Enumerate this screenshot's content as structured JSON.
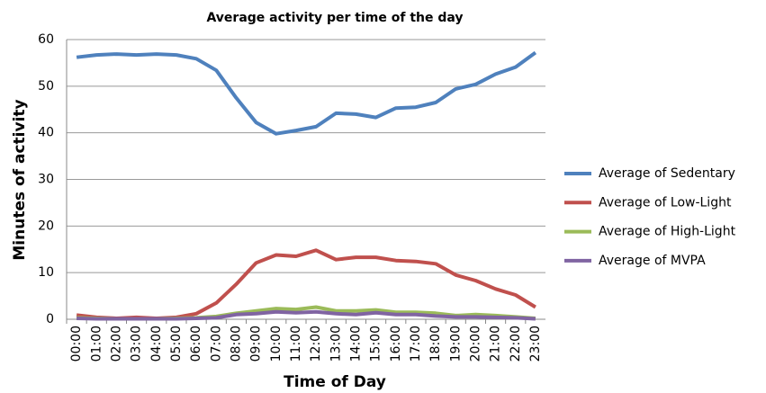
{
  "chart_data": {
    "type": "line",
    "title": "Average activity per time of the day",
    "x_label": "Time of Day",
    "y_label": "Minutes of activity",
    "categories": [
      "00:00",
      "01:00",
      "02:00",
      "03:00",
      "04:00",
      "05:00",
      "06:00",
      "07:00",
      "08:00",
      "09:00",
      "10:00",
      "11:00",
      "12:00",
      "13:00",
      "14:00",
      "15:00",
      "16:00",
      "17:00",
      "18:00",
      "19:00",
      "20:00",
      "21:00",
      "22:00",
      "23:00"
    ],
    "series": [
      {
        "name": "Average of Sedentary",
        "color": "#4f81bd",
        "values": [
          56.2,
          56.7,
          56.9,
          56.7,
          56.9,
          56.7,
          55.9,
          53.4,
          47.5,
          42.2,
          39.8,
          40.5,
          41.3,
          44.2,
          44.0,
          43.3,
          45.3,
          45.5,
          46.5,
          49.4,
          50.4,
          52.6,
          54.1,
          57.2
        ]
      },
      {
        "name": "Average of Low-Light",
        "color": "#c0504d",
        "values": [
          0.9,
          0.4,
          0.2,
          0.4,
          0.2,
          0.4,
          1.2,
          3.5,
          7.5,
          12.1,
          13.8,
          13.5,
          14.8,
          12.8,
          13.3,
          13.3,
          12.6,
          12.4,
          11.9,
          9.5,
          8.3,
          6.5,
          5.2,
          2.6
        ]
      },
      {
        "name": "Average of High-Light",
        "color": "#9bbb59",
        "values": [
          0.3,
          0.2,
          0.1,
          0.1,
          0.1,
          0.2,
          0.3,
          0.6,
          1.3,
          1.8,
          2.3,
          2.1,
          2.6,
          1.8,
          1.8,
          2.0,
          1.5,
          1.5,
          1.3,
          0.8,
          1.0,
          0.8,
          0.5,
          0.2
        ]
      },
      {
        "name": "Average of MVPA",
        "color": "#8064a2",
        "values": [
          0.2,
          0.1,
          0.1,
          0.1,
          0.1,
          0.1,
          0.2,
          0.3,
          1.0,
          1.2,
          1.6,
          1.4,
          1.6,
          1.2,
          1.0,
          1.4,
          1.0,
          1.0,
          0.7,
          0.5,
          0.5,
          0.4,
          0.3,
          0.1
        ]
      }
    ],
    "ylim": [
      0,
      60
    ],
    "yticks": [
      0,
      10,
      20,
      30,
      40,
      50,
      60
    ],
    "grid": true,
    "legend": "right"
  }
}
